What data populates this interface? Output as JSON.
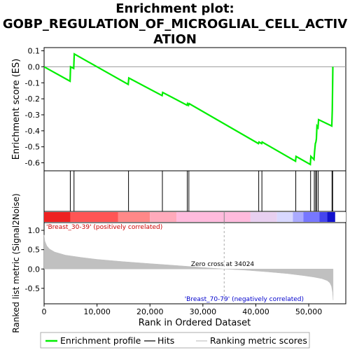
{
  "title_lines": [
    "Enrichment plot:",
    "GOBP_REGULATION_OF_MICROGLIAL_CELL_ACTIV",
    "ATION"
  ],
  "chart_data": [
    {
      "type": "line",
      "panel": "enrichment-score",
      "ylabel": "Enrichment score (ES)",
      "ylim": [
        -0.65,
        0.12
      ],
      "yticks": [
        0.1,
        0.0,
        -0.1,
        -0.2,
        -0.3,
        -0.4,
        -0.5,
        -0.6
      ],
      "ytick_labels": [
        "0.1",
        "0.0",
        "-0.1",
        "-0.2",
        "-0.3",
        "-0.4",
        "-0.5",
        "-0.6"
      ],
      "xlim": [
        0,
        57000
      ],
      "series": [
        {
          "name": "Enrichment profile",
          "color": "#00ee00",
          "x": [
            0,
            4900,
            5000,
            5600,
            5700,
            15900,
            16000,
            22300,
            22400,
            27000,
            27100,
            27300,
            27400,
            40500,
            40600,
            41100,
            41200,
            47500,
            47600,
            50300,
            50400,
            51000,
            51100,
            51250,
            51350,
            51450,
            51550,
            51750,
            51850,
            54350,
            54450,
            54500,
            54550
          ],
          "y": [
            0.0,
            -0.09,
            0.0,
            -0.01,
            0.08,
            -0.11,
            -0.07,
            -0.18,
            -0.16,
            -0.24,
            -0.23,
            -0.24,
            -0.23,
            -0.48,
            -0.47,
            -0.48,
            -0.47,
            -0.59,
            -0.56,
            -0.61,
            -0.56,
            -0.58,
            -0.53,
            -0.48,
            -0.47,
            -0.45,
            -0.37,
            -0.38,
            -0.33,
            -0.37,
            -0.27,
            -0.14,
            0.0
          ]
        }
      ]
    },
    {
      "type": "hits",
      "panel": "hit-positions",
      "label": "Hits",
      "color": "#000000",
      "positions": [
        4950,
        5650,
        15950,
        22350,
        27050,
        27350,
        40550,
        41150,
        47550,
        50350,
        51050,
        51300,
        51500,
        51800,
        54400,
        54520
      ]
    },
    {
      "type": "heatmap",
      "panel": "ranking-colorbar",
      "colors": [
        "#ee2222",
        "#ff5555",
        "#ff8888",
        "#ffaabb",
        "#ffbbdd",
        "#e8d0f0",
        "#d8d8ff",
        "#aaaaff",
        "#7777ff",
        "#4444ee",
        "#1111cc"
      ],
      "stops": [
        0,
        5000,
        14000,
        20000,
        25000,
        39000,
        44000,
        47000,
        49000,
        52000,
        53500,
        55000
      ]
    },
    {
      "type": "area",
      "panel": "ranking-metric",
      "label": "Ranking metric scores",
      "ylabel": "Ranked list metric (Signal2Noise)",
      "xlabel": "Rank in Ordered Dataset",
      "ylim": [
        -0.9,
        1.2
      ],
      "yticks": [
        1.0,
        0.5,
        0.0,
        -0.5
      ],
      "ytick_labels": [
        "1.0",
        "0.5",
        "0.0",
        "-0.5"
      ],
      "xlim": [
        0,
        57000
      ],
      "xticks": [
        0,
        10000,
        20000,
        30000,
        40000,
        50000
      ],
      "xtick_labels": [
        "0",
        "10,000",
        "20,000",
        "30,000",
        "40,000",
        "50,000"
      ],
      "color": "#c0c0c0",
      "x": [
        0,
        150,
        500,
        1000,
        2000,
        4000,
        7000,
        10000,
        15000,
        20000,
        25000,
        30000,
        34024,
        38000,
        42000,
        46000,
        49000,
        51000,
        52500,
        53500,
        54000,
        54300,
        54500,
        54600
      ],
      "y": [
        0.88,
        0.72,
        0.6,
        0.52,
        0.44,
        0.36,
        0.3,
        0.25,
        0.19,
        0.14,
        0.09,
        0.04,
        0.0,
        -0.03,
        -0.07,
        -0.12,
        -0.17,
        -0.21,
        -0.25,
        -0.3,
        -0.36,
        -0.45,
        -0.6,
        -0.8
      ],
      "zero_cross_rank": 34024,
      "zero_cross_text": "Zero cross at 34024",
      "pos_label": "'Breast_30-39' (positively correlated)",
      "neg_label": "'Breast_70-79' (negatively correlated)",
      "pos_color": "#cc0000",
      "neg_color": "#0000cc"
    }
  ],
  "legend": [
    {
      "label": "Enrichment profile",
      "color": "#00ee00"
    },
    {
      "label": "Hits",
      "color": "#000000"
    },
    {
      "label": "Ranking metric scores",
      "color": "#c0c0c0"
    }
  ]
}
